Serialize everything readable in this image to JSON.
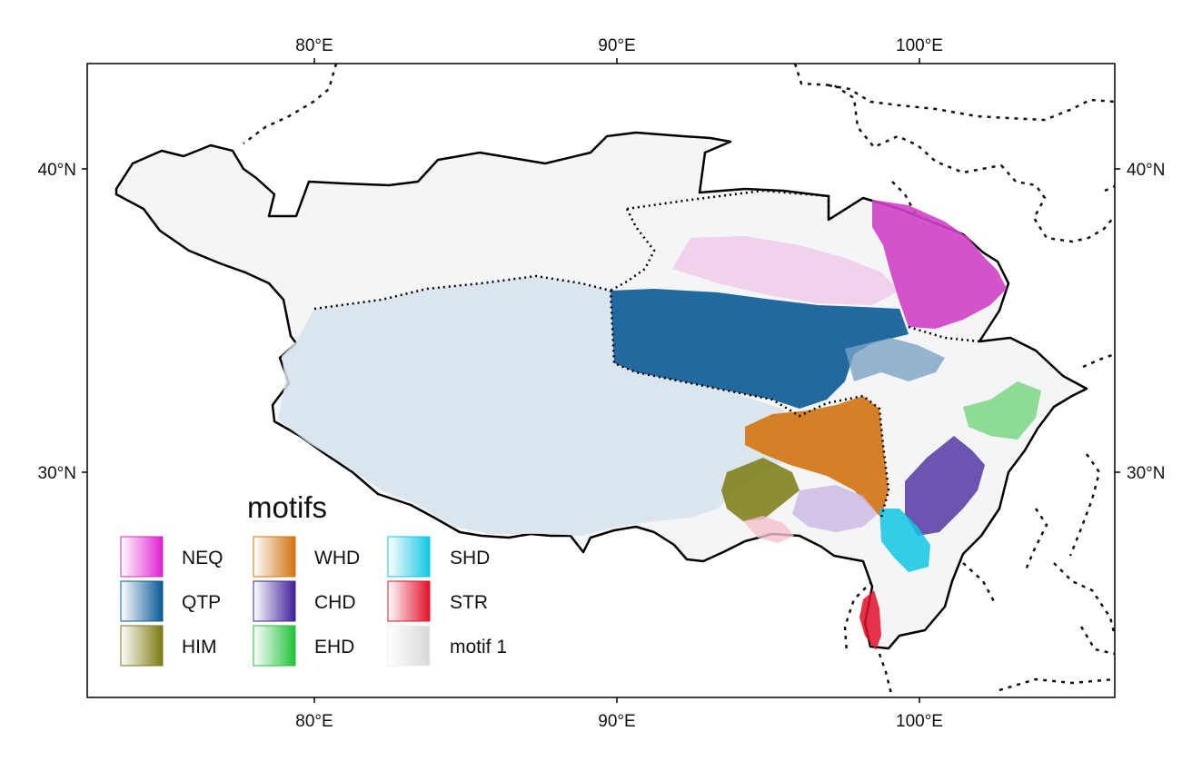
{
  "axes": {
    "top_ticks": [
      "80°E",
      "90°E",
      "100°E"
    ],
    "bottom_ticks": [
      "80°E",
      "90°E",
      "100°E"
    ],
    "left_ticks": [
      "40°N",
      "30°N"
    ],
    "right_ticks": [
      "40°N",
      "30°N"
    ]
  },
  "legend": {
    "title": "motifs",
    "items": [
      {
        "label": "NEQ",
        "color": "#e020d0"
      },
      {
        "label": "QTP",
        "color": "#0a5a96"
      },
      {
        "label": "HIM",
        "color": "#7a7a10"
      },
      {
        "label": "WHD",
        "color": "#d2730f"
      },
      {
        "label": "CHD",
        "color": "#3e1f9a"
      },
      {
        "label": "EHD",
        "color": "#22c23a"
      },
      {
        "label": "SHD",
        "color": "#12c6e4"
      },
      {
        "label": "STR",
        "color": "#e0102a"
      },
      {
        "label": "motif 1",
        "color": "#d8d8d8"
      }
    ]
  }
}
